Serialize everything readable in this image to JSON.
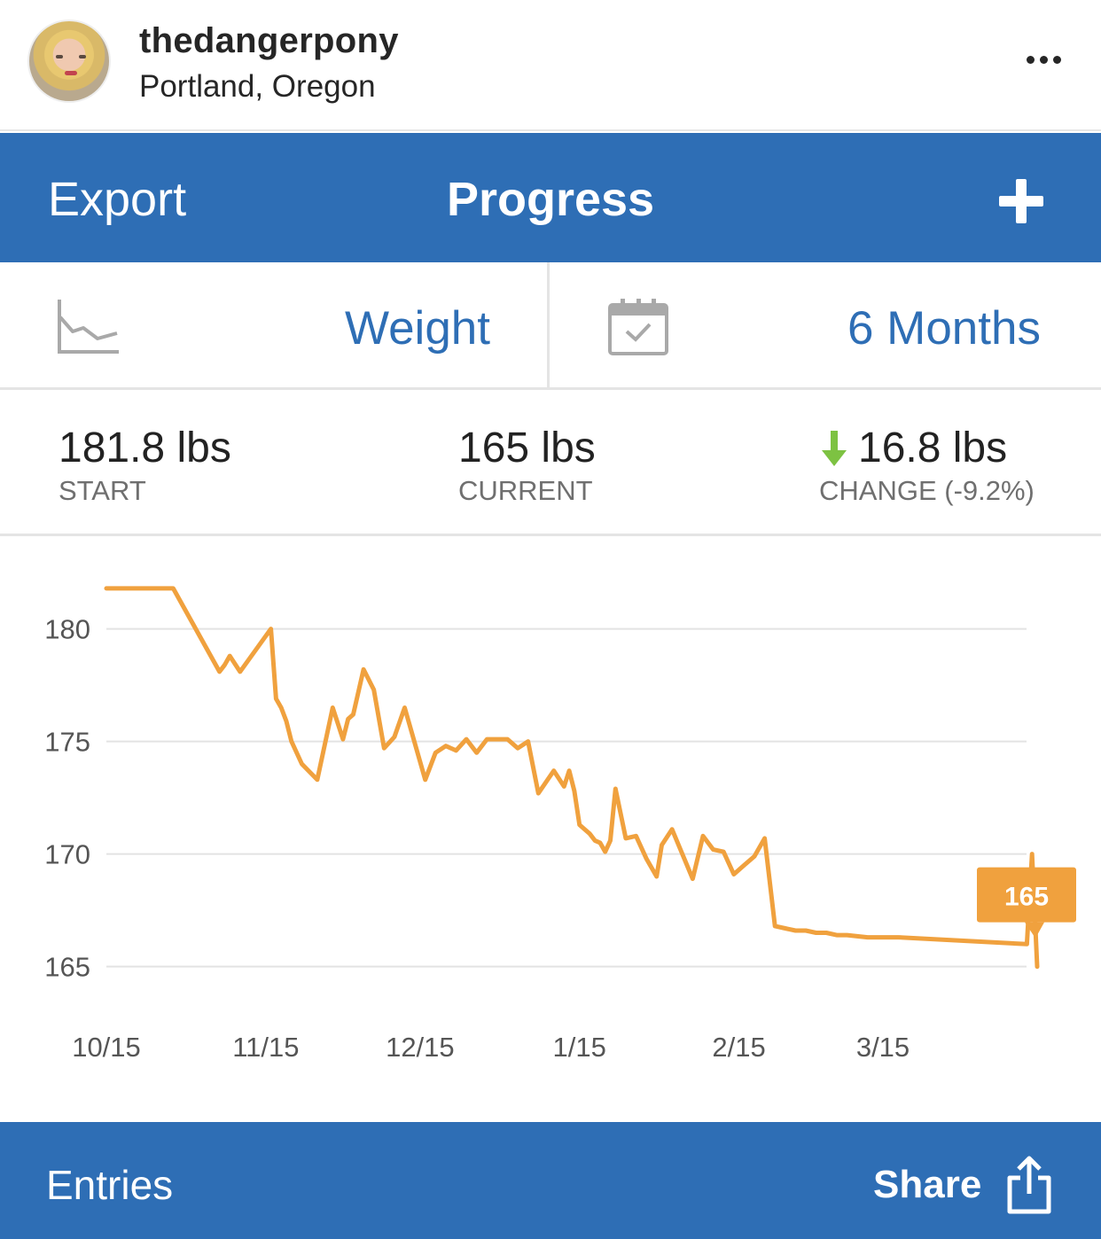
{
  "post_header": {
    "username": "thedangerpony",
    "location": "Portland, Oregon",
    "more_icon": "more-dots-icon"
  },
  "navbar": {
    "left_label": "Export",
    "title": "Progress",
    "right_icon": "plus-icon"
  },
  "selector": {
    "metric": {
      "icon": "line-chart-icon",
      "label": "Weight"
    },
    "range": {
      "icon": "calendar-check-icon",
      "label": "6 Months"
    }
  },
  "stats": {
    "start": {
      "value": "181.8 lbs",
      "label": "START"
    },
    "current": {
      "value": "165 lbs",
      "label": "CURRENT"
    },
    "change": {
      "value": "16.8 lbs",
      "label": "CHANGE (-9.2%)",
      "direction_icon": "arrow-down-icon"
    }
  },
  "colors": {
    "brand_blue": "#2e6eb5",
    "series_orange": "#f0a13e",
    "down_arrow_green": "#7dc242"
  },
  "chart_data": {
    "type": "line",
    "title": "",
    "xlabel": "",
    "ylabel": "",
    "ylim": [
      162.9,
      184
    ],
    "yticks": [
      180,
      175,
      170,
      165
    ],
    "xticks": [
      "10/15",
      "11/15",
      "12/15",
      "1/15",
      "2/15",
      "3/15"
    ],
    "grid": true,
    "callout": "165",
    "series": [
      {
        "x": [
          "2014-10-15",
          "2014-10-28",
          "2014-11-06",
          "2014-11-07",
          "2014-11-08",
          "2014-11-10",
          "2014-11-16",
          "2014-11-17",
          "2014-11-18",
          "2014-11-19",
          "2014-11-20",
          "2014-11-22",
          "2014-11-25",
          "2014-11-28",
          "2014-11-30",
          "2014-12-01",
          "2014-12-02",
          "2014-12-04",
          "2014-12-06",
          "2014-12-08",
          "2014-12-10",
          "2014-12-12",
          "2014-12-14",
          "2014-12-16",
          "2014-12-18",
          "2014-12-20",
          "2014-12-22",
          "2014-12-24",
          "2014-12-26",
          "2014-12-28",
          "2015-01-01",
          "2015-01-03",
          "2015-01-05",
          "2015-01-07",
          "2015-01-10",
          "2015-01-12",
          "2015-01-13",
          "2015-01-14",
          "2015-01-15",
          "2015-01-16",
          "2015-01-17",
          "2015-01-18",
          "2015-01-19",
          "2015-01-20",
          "2015-01-21",
          "2015-01-22",
          "2015-01-24",
          "2015-01-26",
          "2015-01-28",
          "2015-01-30",
          "2015-01-31",
          "2015-02-02",
          "2015-02-04",
          "2015-02-06",
          "2015-02-08",
          "2015-02-10",
          "2015-02-12",
          "2015-02-14",
          "2015-02-16",
          "2015-02-18",
          "2015-02-20",
          "2015-02-22",
          "2015-02-24",
          "2015-02-26",
          "2015-02-28",
          "2015-03-02",
          "2015-03-04",
          "2015-03-06",
          "2015-03-08",
          "2015-03-12",
          "2015-03-16",
          "2015-03-17",
          "2015-03-18",
          "2015-04-12",
          "2015-04-13",
          "2015-04-14"
        ],
        "y": [
          181.8,
          181.8,
          178.1,
          178.4,
          178.8,
          178.1,
          180.0,
          176.9,
          176.5,
          175.9,
          175.0,
          174.0,
          173.3,
          176.5,
          175.1,
          176.0,
          176.2,
          178.2,
          177.3,
          174.7,
          175.2,
          176.5,
          174.9,
          173.3,
          174.5,
          174.8,
          174.6,
          175.1,
          174.5,
          175.1,
          175.1,
          174.7,
          175.0,
          172.7,
          173.7,
          173.0,
          173.7,
          172.8,
          171.3,
          171.1,
          170.9,
          170.6,
          170.5,
          170.1,
          170.6,
          172.9,
          170.7,
          170.8,
          169.8,
          169.0,
          170.4,
          171.1,
          170.0,
          168.9,
          170.8,
          170.2,
          170.1,
          169.1,
          169.5,
          169.9,
          170.7,
          166.8,
          166.7,
          166.6,
          166.6,
          166.5,
          166.5,
          166.4,
          166.4,
          166.3,
          166.3,
          166.3,
          166.3,
          166.0,
          170.0,
          165.0
        ]
      }
    ]
  },
  "toolbar": {
    "left_label": "Entries",
    "right_label": "Share",
    "right_icon": "share-icon"
  }
}
